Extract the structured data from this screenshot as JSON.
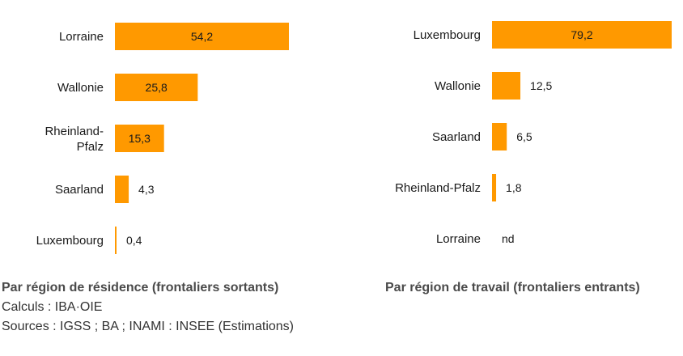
{
  "bar_color": "#ff9900",
  "chart_data": [
    {
      "type": "bar",
      "orientation": "horizontal",
      "title": "Par région de résidence (frontaliers sortants)",
      "categories": [
        "Lorraine",
        "Wallonie",
        "Rheinland-\nPfalz",
        "Saarland",
        "Luxembourg"
      ],
      "values": [
        54.2,
        25.8,
        15.3,
        4.3,
        0.4
      ],
      "value_labels": [
        "54,2",
        "25,8",
        "15,3",
        "4,3",
        "0,4"
      ],
      "xlim": [
        0,
        80
      ],
      "grid": false,
      "legend": "none"
    },
    {
      "type": "bar",
      "orientation": "horizontal",
      "title": "Par région de travail (frontaliers entrants)",
      "categories": [
        "Luxembourg",
        "Wallonie",
        "Saarland",
        "Rheinland-Pfalz",
        "Lorraine"
      ],
      "values": [
        79.2,
        12.5,
        6.5,
        1.8,
        null
      ],
      "value_labels": [
        "79,2",
        "12,5",
        "6,5",
        "1,8",
        "nd"
      ],
      "xlim": [
        0,
        80
      ],
      "grid": false,
      "legend": "none"
    }
  ],
  "footer": {
    "left_title": "Par région de résidence (frontaliers sortants)",
    "right_title": "Par région de travail (frontaliers entrants)",
    "calcs": "Calculs : IBA·OIE",
    "sources": "Sources : IGSS ; BA ; INAMI : INSEE (Estimations)"
  }
}
